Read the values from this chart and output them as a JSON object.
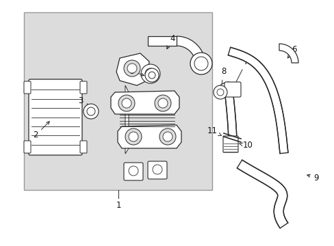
{
  "bg_color": "#ffffff",
  "box_bg": "#dcdcdc",
  "box_edge": "#999999",
  "lc": "#2a2a2a",
  "lc2": "#444444",
  "label_fs": 8.5,
  "label_color": "#111111",
  "figsize": [
    4.89,
    3.6
  ],
  "dpi": 100,
  "xlim": [
    0,
    489
  ],
  "ylim": [
    0,
    360
  ]
}
